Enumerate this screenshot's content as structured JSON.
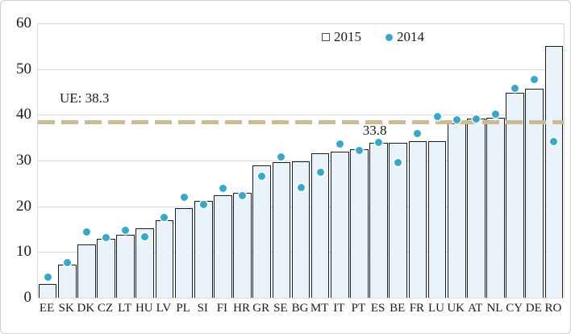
{
  "chart_data": {
    "type": "bar",
    "title": "",
    "xlabel": "",
    "ylabel": "",
    "ylim": [
      0,
      60
    ],
    "yticks": [
      0,
      10,
      20,
      30,
      40,
      50,
      60
    ],
    "grid": true,
    "legend_position": "top-center",
    "categories": [
      "EE",
      "SK",
      "DK",
      "CZ",
      "LT",
      "HU",
      "LV",
      "PL",
      "SI",
      "FI",
      "HR",
      "GR",
      "SE",
      "BG",
      "MT",
      "IT",
      "PT",
      "ES",
      "BE",
      "FR",
      "LU",
      "UK",
      "AT",
      "NL",
      "CY",
      "DE",
      "RO"
    ],
    "series": [
      {
        "name": "2015",
        "type": "bar",
        "values": [
          3.0,
          7.2,
          11.6,
          12.9,
          13.7,
          15.1,
          17.0,
          19.6,
          21.2,
          22.5,
          22.9,
          29.0,
          29.6,
          29.8,
          31.6,
          32.0,
          32.5,
          33.8,
          33.9,
          34.2,
          34.3,
          38.2,
          39.2,
          39.4,
          44.8,
          45.7,
          55.0
        ]
      },
      {
        "name": "2014",
        "type": "scatter",
        "values": [
          4.5,
          7.6,
          14.3,
          13.1,
          14.8,
          13.3,
          17.5,
          22.0,
          20.3,
          24.0,
          22.3,
          26.6,
          30.8,
          24.1,
          27.5,
          33.6,
          32.2,
          34.0,
          29.6,
          36.0,
          39.6,
          39.0,
          39.1,
          40.2,
          45.8,
          47.7,
          34.1
        ]
      }
    ],
    "reference_line": {
      "value": 38.3,
      "label": "UE: 38.3"
    },
    "annotations": [
      {
        "text": "33.8",
        "category": "ES",
        "value": 33.8
      }
    ],
    "colors": {
      "bar_fill": "#eaf3fa",
      "bar_border": "#1c1c1c",
      "dot": "#3ba7c8",
      "gridline": "#d9d9d9",
      "reference_line": "#c8bc97",
      "text": "#1a1a1a"
    }
  }
}
